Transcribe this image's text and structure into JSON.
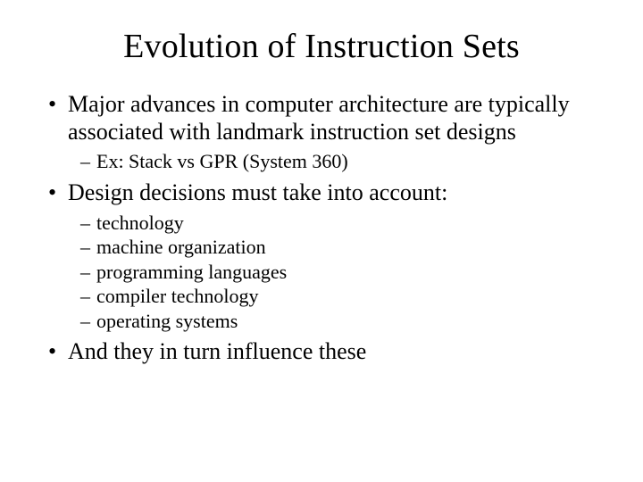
{
  "title": "Evolution of Instruction Sets",
  "bullets": [
    {
      "text": "Major advances in computer architecture are typically associated with landmark instruction set designs",
      "sub": [
        "Ex: Stack vs GPR (System 360)"
      ]
    },
    {
      "text": "Design decisions must take into account:",
      "sub": [
        "technology",
        "machine organization",
        "programming languages",
        "compiler technology",
        "operating systems"
      ]
    },
    {
      "text": "And they in turn influence these",
      "sub": []
    }
  ],
  "style": {
    "background_color": "#ffffff",
    "text_color": "#000000",
    "font_family": "Times New Roman",
    "title_fontsize": 38,
    "body_fontsize": 26,
    "sub_fontsize": 22
  }
}
